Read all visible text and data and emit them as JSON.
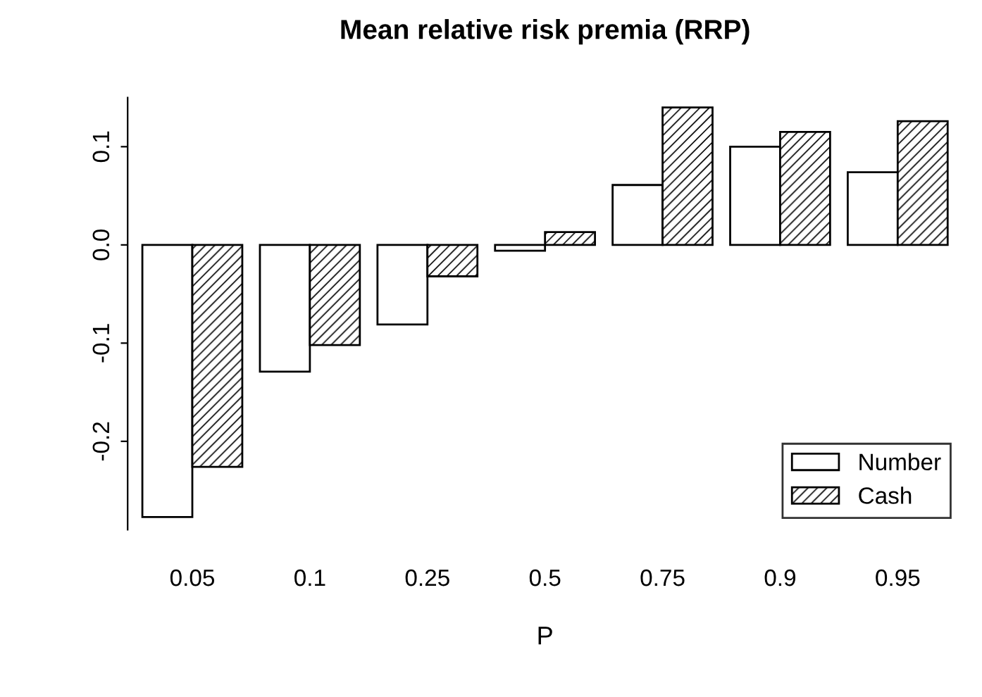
{
  "chart_data": {
    "type": "bar",
    "title": "Mean relative risk premia (RRP)",
    "xlabel": "P",
    "categories": [
      "0.05",
      "0.1",
      "0.25",
      "0.5",
      "0.75",
      "0.9",
      "0.95"
    ],
    "series": [
      {
        "name": "Number",
        "color": "#ffffff",
        "values": [
          -0.277,
          -0.129,
          -0.081,
          -0.006,
          0.061,
          0.1,
          0.074
        ]
      },
      {
        "name": "Cash",
        "color": "#000000",
        "values": [
          -0.226,
          -0.102,
          -0.032,
          0.013,
          0.14,
          0.115,
          0.126
        ]
      }
    ],
    "ylim": [
      -0.29,
      0.15
    ],
    "yticks": [
      {
        "value": -0.2,
        "label": "-0.2"
      },
      {
        "value": -0.1,
        "label": "-0.1"
      },
      {
        "value": 0,
        "label": "0.0"
      },
      0.1
    ],
    "grid": false,
    "legend": "bottom right"
  }
}
